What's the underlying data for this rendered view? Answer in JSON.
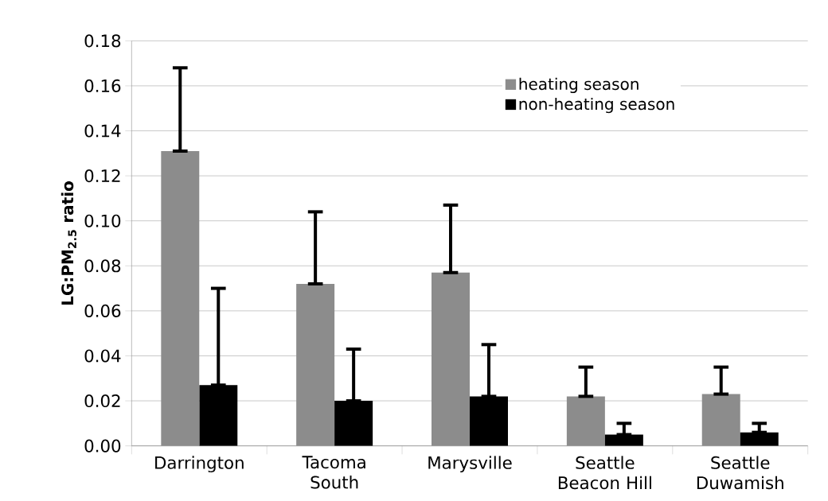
{
  "chart_data": {
    "type": "bar",
    "ylabel": "**LG:PM$_{2.5}$ ratio**",
    "categories": [
      "Darrington",
      "Tacoma South",
      "Marysville",
      "Seattle Beacon Hill",
      "Seattle Duwamish"
    ],
    "series": [
      {
        "name": "heating season",
        "color": "#8c8c8c",
        "values": [
          0.131,
          0.072,
          0.077,
          0.022,
          0.023
        ],
        "errors": [
          [
            0.131,
            0.168
          ],
          [
            0.072,
            0.104
          ],
          [
            0.077,
            0.107
          ],
          [
            0.022,
            0.035
          ],
          [
            0.023,
            0.035
          ]
        ]
      },
      {
        "name": "non-heating season",
        "color": "#000000",
        "values": [
          0.027,
          0.02,
          0.022,
          0.005,
          0.006
        ],
        "errors": [
          [
            0.027,
            0.07
          ],
          [
            0.02,
            0.043
          ],
          [
            0.022,
            0.045
          ],
          [
            0.005,
            0.01
          ],
          [
            0.006,
            0.01
          ]
        ]
      }
    ],
    "ylim": [
      0,
      0.18
    ],
    "yticks": [
      {
        "value": 0,
        "label": "0.00"
      },
      {
        "value": 0.02,
        "label": "0.02"
      },
      {
        "value": 0.04,
        "label": "0.04"
      },
      {
        "value": 0.06,
        "label": "0.06"
      },
      {
        "value": 0.08,
        "label": "0.08"
      },
      {
        "value": 0.1,
        "label": "0.10"
      },
      {
        "value": 0.12,
        "label": "0.12"
      },
      {
        "value": 0.14,
        "label": "0.14"
      },
      {
        "value": 0.16,
        "label": "0.16"
      },
      {
        "value": 0.18,
        "label": "0.18"
      }
    ],
    "grid": "y",
    "legend": "top"
  }
}
